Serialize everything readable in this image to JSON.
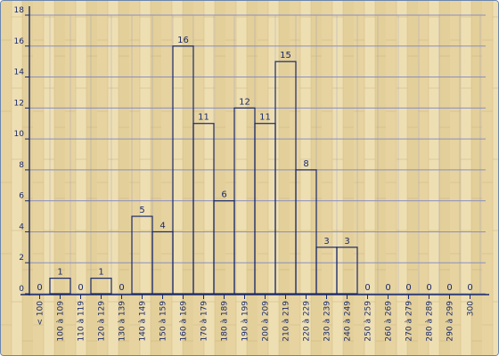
{
  "chart_data": {
    "type": "bar",
    "title": "",
    "xlabel": "",
    "ylabel": "",
    "ylim": [
      0,
      18
    ],
    "yticks": [
      0,
      2,
      4,
      6,
      8,
      10,
      12,
      14,
      16,
      18
    ],
    "categories": [
      "< 100",
      "100 à 109",
      "110 à 119",
      "120 à 129",
      "130 à 139",
      "140 à 149",
      "150 à 159",
      "160 à 169",
      "170 à 179",
      "180 à 189",
      "190 à 199",
      "200 à 209",
      "210 à 219",
      "220 à 229",
      "230 à 239",
      "240 à 249",
      "250 à 259",
      "260 à 269",
      "270 à 279",
      "280 à 289",
      "290 à 299",
      "300"
    ],
    "values": [
      0,
      1,
      0,
      1,
      0,
      5,
      4,
      16,
      11,
      6,
      12,
      11,
      15,
      8,
      3,
      3,
      0,
      0,
      0,
      0,
      0,
      0
    ],
    "grid": true,
    "legend": "none",
    "colors": {
      "axis": "#1a2a6a",
      "bar_stroke": "#1a2a6a",
      "grid": "#8a8fc0",
      "background": "#e9d8a8"
    }
  }
}
